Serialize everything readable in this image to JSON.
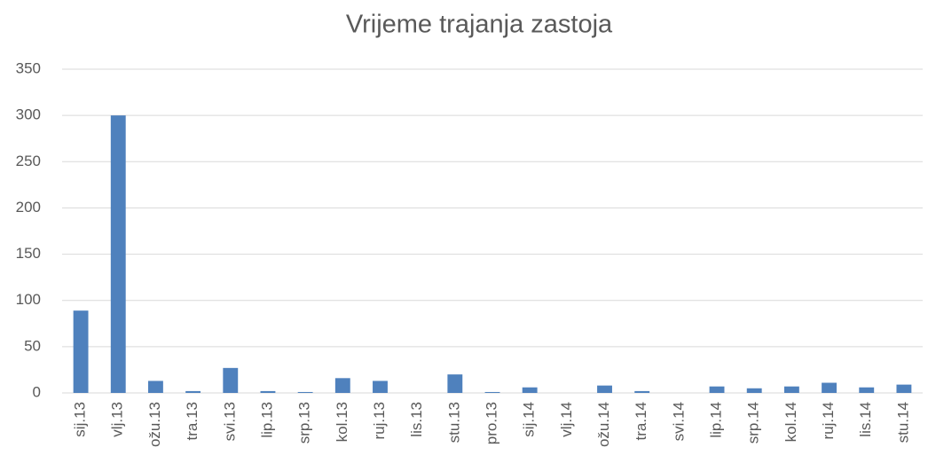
{
  "chart_data": {
    "type": "bar",
    "title": "Vrijeme trajanja zastoja",
    "categories": [
      "sij.13",
      "vlj.13",
      "ožu.13",
      "tra.13",
      "svi.13",
      "lip.13",
      "srp.13",
      "kol.13",
      "ruj.13",
      "lis.13",
      "stu.13",
      "pro.13",
      "sij.14",
      "vlj.14",
      "ožu.14",
      "tra.14",
      "svi.14",
      "lip.14",
      "srp.14",
      "kol.14",
      "ruj.14",
      "lis.14",
      "stu.14"
    ],
    "values": [
      89,
      300,
      13,
      2,
      27,
      2,
      1,
      16,
      13,
      0,
      20,
      1,
      6,
      0,
      8,
      2,
      0,
      7,
      5,
      7,
      11,
      6,
      9
    ],
    "color": "#4f81bd",
    "ylim": [
      0,
      350
    ],
    "yticks": [
      0,
      50,
      100,
      150,
      200,
      250,
      300,
      350
    ],
    "grid": true
  }
}
